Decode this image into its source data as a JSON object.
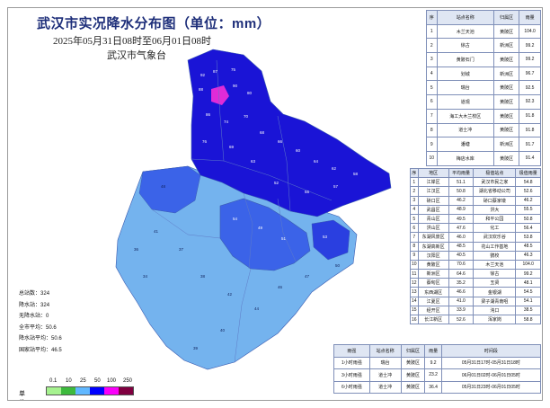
{
  "title": "武汉市实况降水分布图（单位：mm）",
  "subtitle": "2025年05月31日08时至06月01日08时",
  "agency": "武汉市气象台",
  "stats": [
    {
      "label": "总站数",
      "value": "324"
    },
    {
      "label": "降水站",
      "value": "324"
    },
    {
      "label": "无降水站",
      "value": "0"
    },
    {
      "label": "全市平均",
      "value": "50.6"
    },
    {
      "label": "降水站平均",
      "value": "50.6"
    },
    {
      "label": "国家站平均",
      "value": "46.5"
    }
  ],
  "legend": {
    "unit": "单位:mm",
    "ticks": [
      "0.1",
      "10",
      "25",
      "50",
      "100",
      "250"
    ],
    "colors": [
      "#a6f28f",
      "#3dba3d",
      "#61b8ff",
      "#0000ff",
      "#fa00fa",
      "#800040"
    ]
  },
  "colors": {
    "light_blue": "#74b3ee",
    "mid_blue": "#3b63e8",
    "deep_blue": "#1a14d6",
    "magenta": "#e02bd8",
    "title": "#1e2f7a"
  },
  "station_table": {
    "headers": [
      "序",
      "站点名称",
      "归属区",
      "雨量"
    ],
    "rows": [
      [
        "1",
        "木兰天池",
        "黄陂区",
        "104.0"
      ],
      [
        "2",
        "徐古",
        "新洲区",
        "99.2"
      ],
      [
        "3",
        "黄陂石门",
        "黄陂区",
        "99.2"
      ],
      [
        "4",
        "划城",
        "新洲区",
        "96.7"
      ],
      [
        "5",
        "瑞台",
        "黄陂区",
        "92.5"
      ],
      [
        "6",
        "道观",
        "黄陂区",
        "92.3"
      ],
      [
        "7",
        "海工大木兰校区",
        "黄陂区",
        "91.8"
      ],
      [
        "8",
        "道士冲",
        "黄陂区",
        "91.8"
      ],
      [
        "9",
        "潘塘",
        "新洲区",
        "91.7"
      ],
      [
        "10",
        "梅店水库",
        "黄陂区",
        "91.4"
      ]
    ]
  },
  "district_table": {
    "headers": [
      "序",
      "地区",
      "平均雨量",
      "极值站点",
      "极值雨量"
    ],
    "rows": [
      [
        "1",
        "江岸区",
        "51.1",
        "武汉市民之家",
        "54.8"
      ],
      [
        "2",
        "江汉区",
        "50.8",
        "湖北省移动公司",
        "52.6"
      ],
      [
        "3",
        "硚口区",
        "46.2",
        "硚口蔡家墩",
        "46.2"
      ],
      [
        "4",
        "武昌区",
        "48.9",
        "洪大",
        "55.5"
      ],
      [
        "5",
        "青山区",
        "49.5",
        "和平公园",
        "50.8"
      ],
      [
        "6",
        "洪山区",
        "47.6",
        "化工",
        "56.4"
      ],
      [
        "7",
        "东湖风景区",
        "46.0",
        "武汉欢乐谷",
        "53.8"
      ],
      [
        "8",
        "东湖高新区",
        "48.5",
        "花山工作基地",
        "48.5"
      ],
      [
        "9",
        "汉阳区",
        "40.5",
        "鹦校",
        "46.3"
      ],
      [
        "10",
        "黄陂区",
        "70.6",
        "木兰天池",
        "104.0"
      ],
      [
        "11",
        "新洲区",
        "64.6",
        "徐古",
        "99.2"
      ],
      [
        "12",
        "蔡甸区",
        "35.2",
        "玉贤",
        "48.1"
      ],
      [
        "13",
        "东西湖区",
        "46.6",
        "金银湖",
        "54.5"
      ],
      [
        "14",
        "江夏区",
        "41.0",
        "梁子湖青南咀",
        "54.1"
      ],
      [
        "15",
        "经开区",
        "33.9",
        "沌口",
        "38.5"
      ],
      [
        "16",
        "长江新区",
        "52.6",
        "浑家岗",
        "58.8"
      ]
    ]
  },
  "intensity_table": {
    "headers": [
      "雨强",
      "站点名称",
      "归属区",
      "雨量",
      "时间段"
    ],
    "rows": [
      [
        "1小时雨强",
        "瑞台",
        "黄陂区",
        "9.2",
        "05月31日17时-05月31日18时"
      ],
      [
        "3小时雨强",
        "道士冲",
        "黄陂区",
        "23.2",
        "06月01日02时-06月01日05时"
      ],
      [
        "6小时雨强",
        "道士冲",
        "黄陂区",
        "36.4",
        "05月31日23时-06月01日05时"
      ]
    ]
  }
}
